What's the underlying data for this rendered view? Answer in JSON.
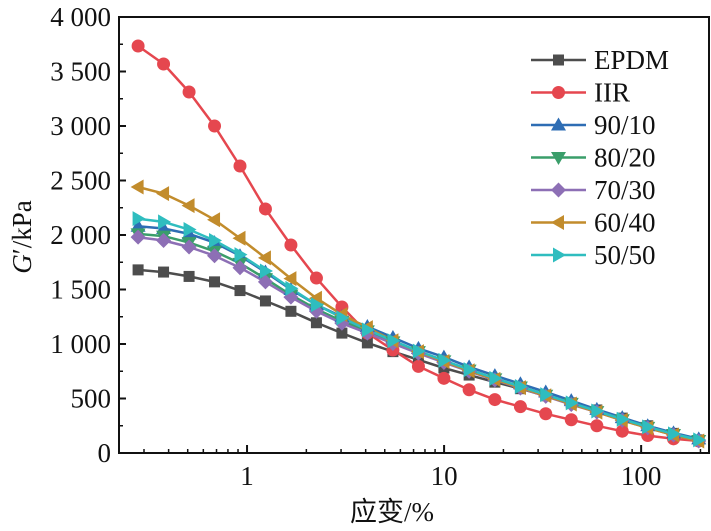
{
  "chart_data": {
    "type": "line",
    "title": "",
    "xlabel": "应变/%",
    "ylabel_italic": "G",
    "ylabel_prime": "′",
    "ylabel_rest": "/kPa",
    "xscale": "log",
    "xlim": [
      0.224,
      221
    ],
    "ylim": [
      0,
      4000
    ],
    "grid": false,
    "legend_position": "top-right",
    "x_ticks": [
      {
        "value": 1,
        "label": "1"
      },
      {
        "value": 10,
        "label": "10"
      },
      {
        "value": 100,
        "label": "100"
      }
    ],
    "y_ticks": [
      {
        "value": 0,
        "label": "0"
      },
      {
        "value": 500,
        "label": "500"
      },
      {
        "value": 1000,
        "label": "1 000"
      },
      {
        "value": 1500,
        "label": "1 500"
      },
      {
        "value": 2000,
        "label": "2 000"
      },
      {
        "value": 2500,
        "label": "2 500"
      },
      {
        "value": 3000,
        "label": "3 000"
      },
      {
        "value": 3500,
        "label": "3 500"
      },
      {
        "value": 4000,
        "label": "4 000"
      }
    ],
    "x": [
      0.28,
      0.377,
      0.508,
      0.684,
      0.921,
      1.24,
      1.67,
      2.25,
      3.03,
      4.08,
      5.5,
      7.41,
      9.98,
      13.4,
      18.1,
      24.4,
      32.8,
      44.2,
      59.6,
      80.2,
      108,
      146,
      196
    ],
    "series": [
      {
        "name": "EPDM",
        "color": "#4d4d4d",
        "marker": "square",
        "values": [
          1680,
          1660,
          1620,
          1570,
          1490,
          1395,
          1300,
          1195,
          1100,
          1010,
          930,
          855,
          780,
          715,
          650,
          590,
          525,
          460,
          395,
          320,
          250,
          180,
          120
        ]
      },
      {
        "name": "IIR",
        "color": "#e5474f",
        "marker": "circle",
        "values": [
          3734,
          3569,
          3312,
          3000,
          2633,
          2239,
          1908,
          1605,
          1340,
          1100,
          945,
          795,
          685,
          580,
          490,
          425,
          360,
          305,
          250,
          200,
          160,
          130,
          110
        ]
      },
      {
        "name": "90/10",
        "color": "#2e6db4",
        "marker": "triangle-up",
        "values": [
          2080,
          2060,
          2010,
          1930,
          1810,
          1660,
          1500,
          1360,
          1250,
          1160,
          1060,
          960,
          880,
          790,
          710,
          635,
          560,
          480,
          400,
          325,
          250,
          185,
          130
        ]
      },
      {
        "name": "80/20",
        "color": "#3a9e6a",
        "marker": "triangle-down",
        "values": [
          2010,
          1990,
          1930,
          1850,
          1740,
          1600,
          1450,
          1320,
          1210,
          1120,
          1020,
          930,
          845,
          760,
          680,
          605,
          530,
          455,
          380,
          305,
          235,
          170,
          115
        ]
      },
      {
        "name": "70/30",
        "color": "#8d6fb5",
        "marker": "diamond",
        "values": [
          1980,
          1950,
          1890,
          1810,
          1700,
          1570,
          1430,
          1300,
          1190,
          1100,
          1005,
          915,
          830,
          750,
          670,
          595,
          520,
          445,
          375,
          300,
          230,
          165,
          110
        ]
      },
      {
        "name": "60/40",
        "color": "#c28c2c",
        "marker": "triangle-left",
        "values": [
          2440,
          2380,
          2270,
          2140,
          1970,
          1790,
          1600,
          1420,
          1270,
          1150,
          1030,
          930,
          840,
          755,
          675,
          600,
          525,
          450,
          375,
          300,
          230,
          165,
          110
        ]
      },
      {
        "name": "50/50",
        "color": "#2fbdbf",
        "marker": "triangle-right",
        "values": [
          2150,
          2120,
          2050,
          1950,
          1820,
          1670,
          1510,
          1360,
          1240,
          1130,
          1030,
          935,
          850,
          765,
          685,
          610,
          535,
          460,
          385,
          310,
          240,
          175,
          120
        ]
      }
    ]
  }
}
